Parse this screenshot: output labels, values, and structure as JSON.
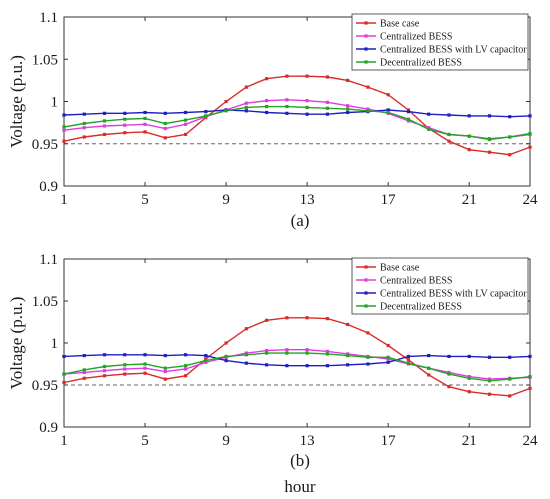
{
  "figure": {
    "shared_xlabel": "hour"
  },
  "chart_data": [
    {
      "type": "line",
      "caption": "(a)",
      "xlabel": "",
      "ylabel": "Voltage (p.u.)",
      "x": [
        1,
        2,
        3,
        4,
        5,
        6,
        7,
        8,
        9,
        10,
        11,
        12,
        13,
        14,
        15,
        16,
        17,
        18,
        19,
        20,
        21,
        22,
        23,
        24
      ],
      "xticks": [
        1,
        5,
        9,
        13,
        17,
        21,
        24
      ],
      "yticks": [
        "0.9",
        "0.95",
        "1",
        "1.05",
        "1.1"
      ],
      "ylim": [
        0.9,
        1.1
      ],
      "xlim": [
        1,
        24
      ],
      "grid": false,
      "legend_position": "top-right",
      "reference_line": 0.95,
      "series": [
        {
          "name": "Base case",
          "color": "#d92b2b",
          "values": [
            0.953,
            0.958,
            0.961,
            0.963,
            0.964,
            0.957,
            0.961,
            0.981,
            1.0,
            1.017,
            1.027,
            1.03,
            1.03,
            1.029,
            1.025,
            1.017,
            1.008,
            0.99,
            0.968,
            0.953,
            0.943,
            0.94,
            0.937,
            0.946
          ]
        },
        {
          "name": "Centralized BESS",
          "color": "#e03be0",
          "values": [
            0.966,
            0.969,
            0.971,
            0.972,
            0.973,
            0.968,
            0.973,
            0.982,
            0.99,
            0.998,
            1.001,
            1.002,
            1.001,
            0.999,
            0.995,
            0.991,
            0.986,
            0.977,
            0.969,
            0.961,
            0.959,
            0.956,
            0.958,
            0.961
          ]
        },
        {
          "name": "Centralized BESS with LV capacitor",
          "color": "#1f1fc0",
          "values": [
            0.984,
            0.985,
            0.986,
            0.986,
            0.987,
            0.986,
            0.987,
            0.988,
            0.99,
            0.989,
            0.987,
            0.986,
            0.985,
            0.985,
            0.987,
            0.988,
            0.99,
            0.988,
            0.985,
            0.984,
            0.983,
            0.983,
            0.982,
            0.983
          ]
        },
        {
          "name": "Decentralized BESS",
          "color": "#22a522",
          "values": [
            0.97,
            0.974,
            0.977,
            0.979,
            0.98,
            0.974,
            0.978,
            0.983,
            0.989,
            0.993,
            0.994,
            0.994,
            0.993,
            0.992,
            0.991,
            0.989,
            0.987,
            0.979,
            0.967,
            0.961,
            0.959,
            0.955,
            0.958,
            0.962
          ]
        }
      ]
    },
    {
      "type": "line",
      "caption": "(b)",
      "xlabel": "hour",
      "ylabel": "Voltage (p.u.)",
      "x": [
        1,
        2,
        3,
        4,
        5,
        6,
        7,
        8,
        9,
        10,
        11,
        12,
        13,
        14,
        15,
        16,
        17,
        18,
        19,
        20,
        21,
        22,
        23,
        24
      ],
      "xticks": [
        1,
        5,
        9,
        13,
        17,
        21,
        24
      ],
      "yticks": [
        "0.9",
        "0.95",
        "1",
        "1.05",
        "1.1"
      ],
      "ylim": [
        0.9,
        1.1
      ],
      "xlim": [
        1,
        24
      ],
      "grid": false,
      "legend_position": "top-right",
      "reference_line": 0.95,
      "series": [
        {
          "name": "Base case",
          "color": "#d92b2b",
          "values": [
            0.953,
            0.958,
            0.961,
            0.963,
            0.964,
            0.957,
            0.961,
            0.981,
            1.0,
            1.017,
            1.027,
            1.03,
            1.03,
            1.029,
            1.022,
            1.012,
            0.997,
            0.98,
            0.962,
            0.948,
            0.942,
            0.939,
            0.937,
            0.946
          ]
        },
        {
          "name": "Centralized BESS",
          "color": "#e03be0",
          "values": [
            0.963,
            0.965,
            0.967,
            0.969,
            0.97,
            0.966,
            0.969,
            0.977,
            0.983,
            0.988,
            0.991,
            0.992,
            0.992,
            0.99,
            0.987,
            0.984,
            0.981,
            0.975,
            0.97,
            0.965,
            0.96,
            0.957,
            0.958,
            0.959
          ]
        },
        {
          "name": "Centralized BESS with LV capacitor",
          "color": "#1f1fc0",
          "values": [
            0.984,
            0.985,
            0.986,
            0.986,
            0.986,
            0.985,
            0.986,
            0.985,
            0.979,
            0.976,
            0.974,
            0.973,
            0.973,
            0.973,
            0.974,
            0.975,
            0.977,
            0.984,
            0.985,
            0.984,
            0.984,
            0.983,
            0.983,
            0.984
          ]
        },
        {
          "name": "Decentralized BESS",
          "color": "#22a522",
          "values": [
            0.963,
            0.968,
            0.972,
            0.974,
            0.975,
            0.97,
            0.973,
            0.979,
            0.984,
            0.986,
            0.988,
            0.988,
            0.988,
            0.987,
            0.985,
            0.983,
            0.983,
            0.976,
            0.97,
            0.963,
            0.958,
            0.955,
            0.957,
            0.96
          ]
        }
      ]
    }
  ]
}
